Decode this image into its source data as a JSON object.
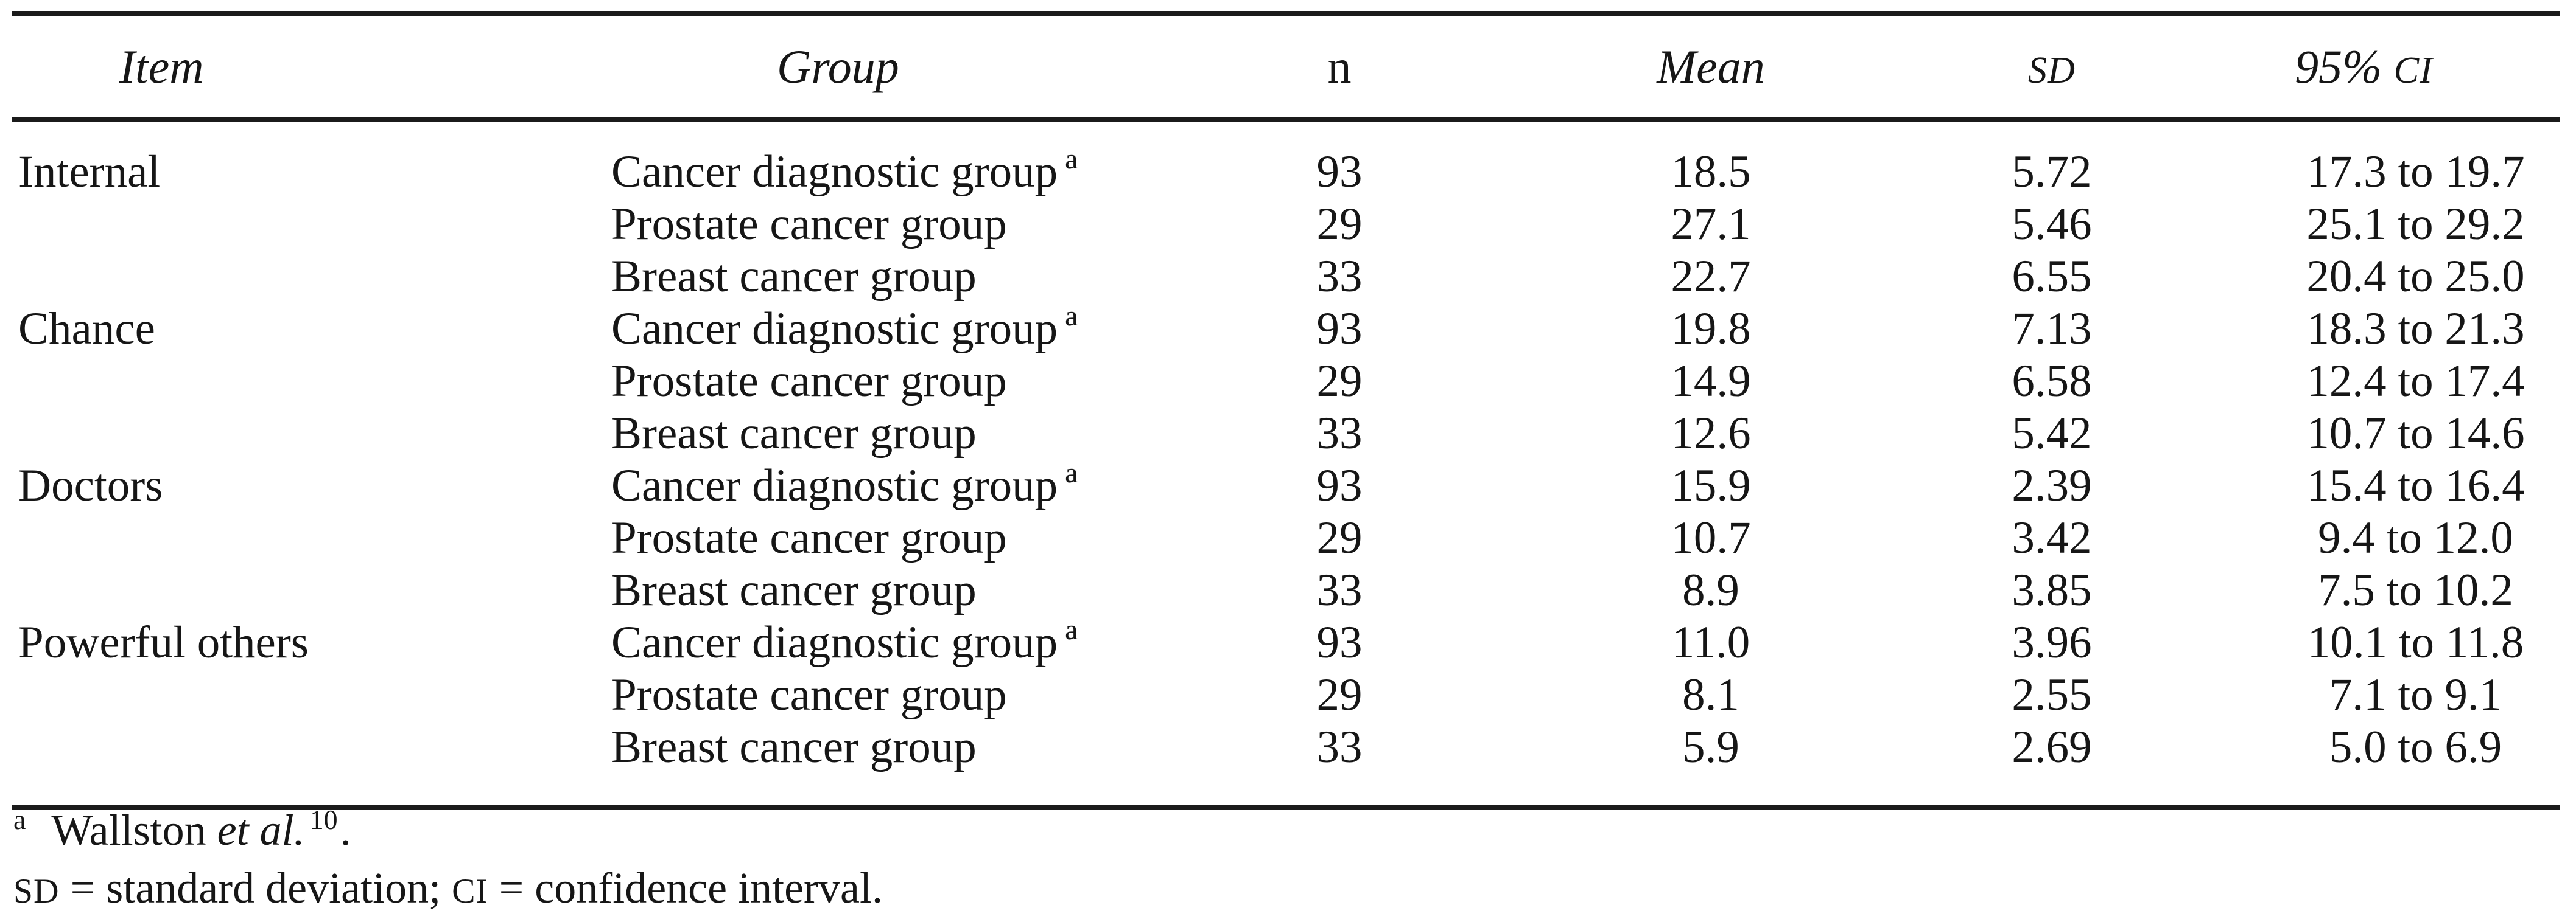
{
  "page": {
    "background_color": "#ffffff",
    "text_color": "#161616",
    "rule_color": "#1b1b1b"
  },
  "table": {
    "header": {
      "item": "Item",
      "group": "Group",
      "n": "n",
      "mean": "Mean",
      "sd": "SD",
      "ci_prefix": "95% ",
      "ci": "CI"
    },
    "rows": [
      {
        "item": "Internal",
        "group": "Cancer diagnostic group",
        "marker": "a",
        "n": "93",
        "mean": "18.5",
        "sd": "5.72",
        "ci": "17.3 to 19.7"
      },
      {
        "item": "",
        "group": "Prostate cancer group",
        "marker": "",
        "n": "29",
        "mean": "27.1",
        "sd": "5.46",
        "ci": "25.1 to 29.2"
      },
      {
        "item": "",
        "group": "Breast cancer group",
        "marker": "",
        "n": "33",
        "mean": "22.7",
        "sd": "6.55",
        "ci": "20.4 to 25.0"
      },
      {
        "item": "Chance",
        "group": "Cancer diagnostic group",
        "marker": "a",
        "n": "93",
        "mean": "19.8",
        "sd": "7.13",
        "ci": "18.3 to 21.3"
      },
      {
        "item": "",
        "group": "Prostate cancer group",
        "marker": "",
        "n": "29",
        "mean": "14.9",
        "sd": "6.58",
        "ci": "12.4 to 17.4"
      },
      {
        "item": "",
        "group": "Breast cancer group",
        "marker": "",
        "n": "33",
        "mean": "12.6",
        "sd": "5.42",
        "ci": "10.7 to 14.6"
      },
      {
        "item": "Doctors",
        "group": "Cancer diagnostic group",
        "marker": "a",
        "n": "93",
        "mean": "15.9",
        "sd": "2.39",
        "ci": "15.4 to 16.4"
      },
      {
        "item": "",
        "group": "Prostate cancer group",
        "marker": "",
        "n": "29",
        "mean": "10.7",
        "sd": "3.42",
        "ci": "9.4 to 12.0"
      },
      {
        "item": "",
        "group": "Breast cancer group",
        "marker": "",
        "n": "33",
        "mean": "8.9",
        "sd": "3.85",
        "ci": "7.5 to 10.2"
      },
      {
        "item": "Powerful others",
        "group": "Cancer diagnostic group",
        "marker": "a",
        "n": "93",
        "mean": "11.0",
        "sd": "3.96",
        "ci": "10.1 to 11.8"
      },
      {
        "item": "",
        "group": "Prostate cancer group",
        "marker": "",
        "n": "29",
        "mean": "8.1",
        "sd": "2.55",
        "ci": "7.1 to 9.1"
      },
      {
        "item": "",
        "group": "Breast cancer group",
        "marker": "",
        "n": "33",
        "mean": "5.9",
        "sd": "2.69",
        "ci": "5.0 to 6.9"
      }
    ]
  },
  "footnotes": {
    "a": {
      "marker": "a",
      "text": "Wallston ",
      "etal": "et al.",
      "ref": "10",
      "period": "."
    },
    "abbr": {
      "sd_label": "SD",
      "sd_text": " = standard deviation; ",
      "ci_label": "CI",
      "ci_text": " = confidence interval."
    }
  }
}
